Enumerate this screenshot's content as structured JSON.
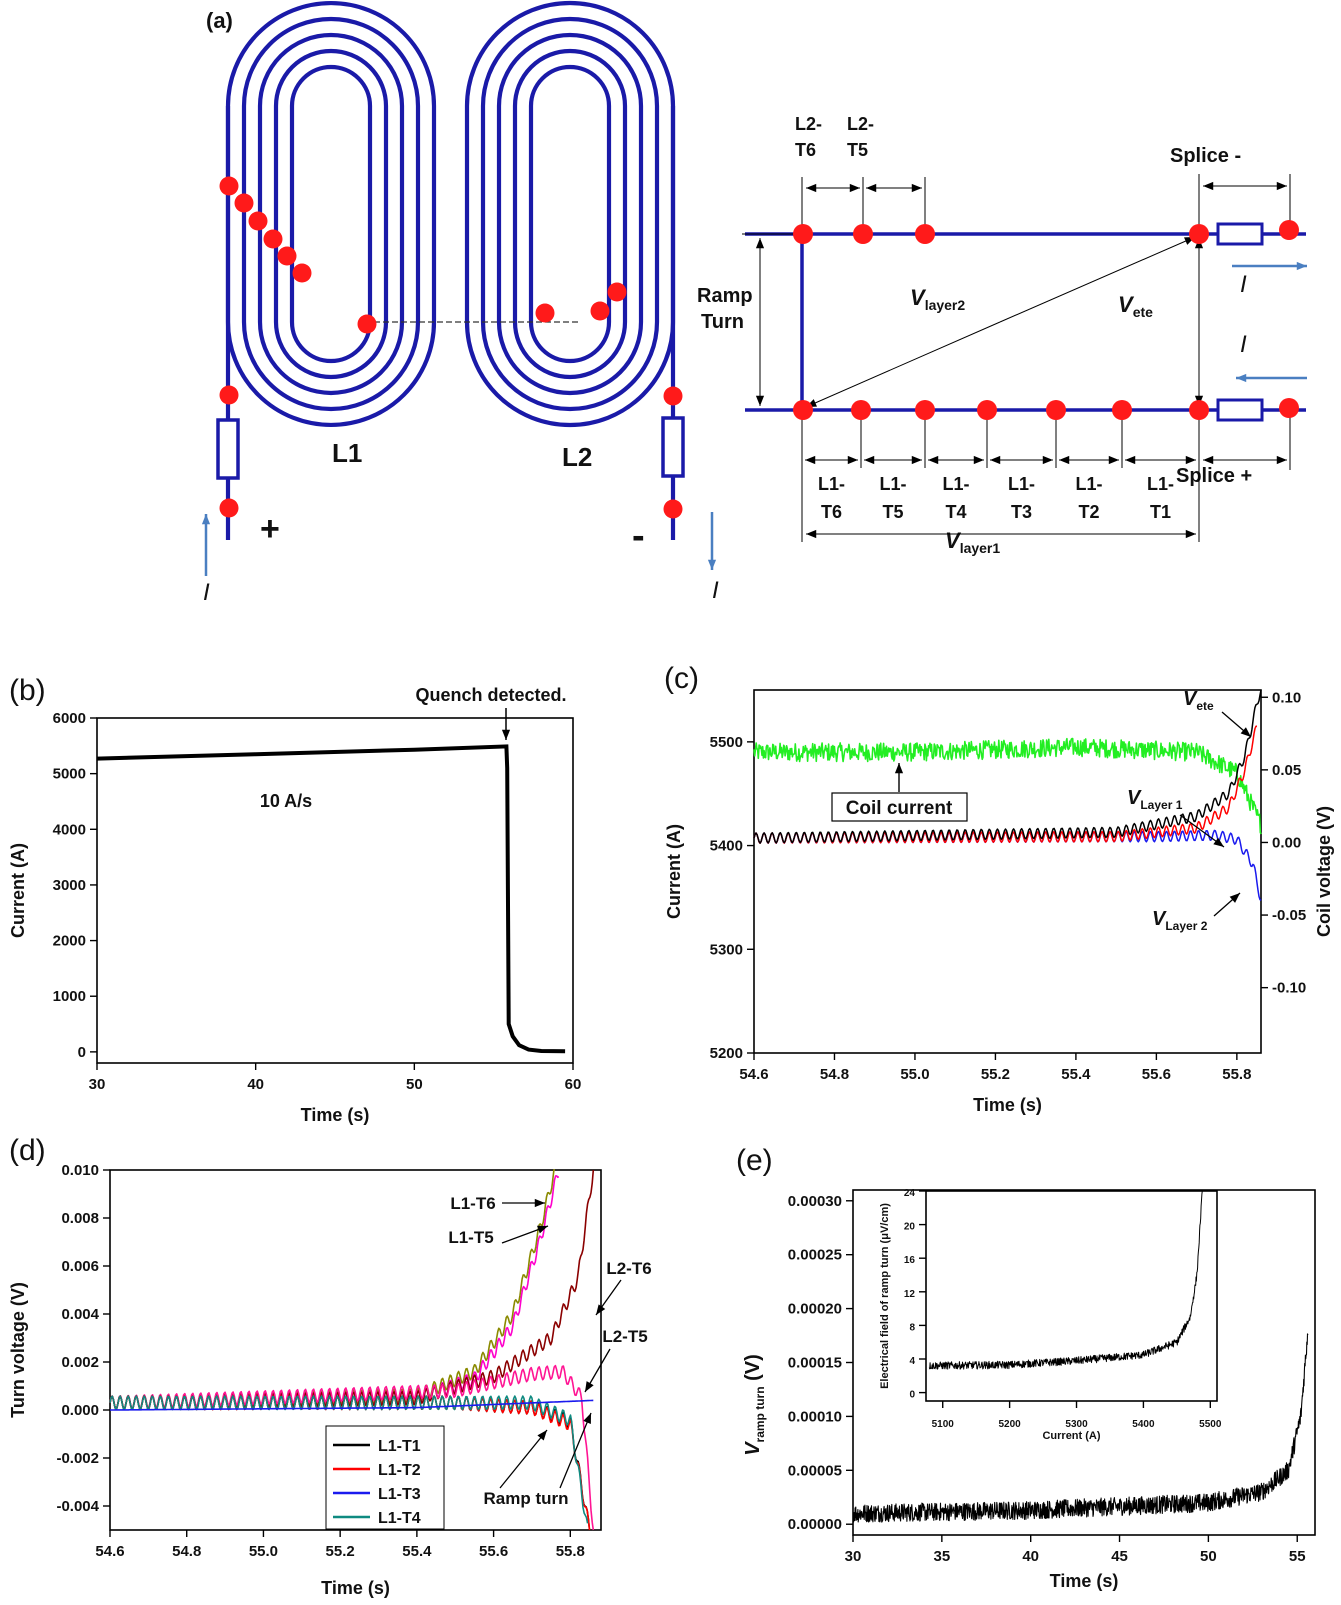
{
  "colors": {
    "coil": "#1a1aa8",
    "node": "#ff1a1a",
    "arrow": "#4a7fc1"
  },
  "panel_a": {
    "label": "(a)",
    "coil_labels": [
      "L1",
      "L2"
    ],
    "terminal_plus": "+",
    "terminal_minus": "-",
    "current_symbol": "I",
    "schematic": {
      "top_segments": [
        [
          "L2-",
          "T6"
        ],
        [
          "L2-",
          "T5"
        ]
      ],
      "bottom_segments": [
        [
          "L1-",
          "T6"
        ],
        [
          "L1-",
          "T5"
        ],
        [
          "L1-",
          "T4"
        ],
        [
          "L1-",
          "T3"
        ],
        [
          "L1-",
          "T2"
        ],
        [
          "L1-",
          "T1"
        ]
      ],
      "splice_minus": "Splice -",
      "splice_plus": "Splice +",
      "ramp_turn": [
        "Ramp",
        "Turn"
      ],
      "v_layer2": {
        "main": "V",
        "sub": "layer2"
      },
      "v_ete": {
        "main": "V",
        "sub": "ete"
      },
      "v_layer1": {
        "main": "V",
        "sub": "layer1"
      }
    }
  },
  "chart_data": [
    {
      "id": "b",
      "type": "line",
      "panel_label": "(b)",
      "xlabel": "Time (s)",
      "ylabel": "Current (A)",
      "xlim": [
        30,
        60
      ],
      "ylim": [
        -200,
        6000
      ],
      "xticks": [
        30,
        40,
        50,
        60
      ],
      "yticks": [
        0,
        1000,
        2000,
        3000,
        4000,
        5000,
        6000
      ],
      "series": [
        {
          "x": [
            30,
            40,
            50,
            55.8,
            55.85,
            55.95,
            56.2,
            56.6,
            57.2,
            58,
            59.5
          ],
          "y": [
            5270,
            5350,
            5430,
            5490,
            5100,
            500,
            280,
            120,
            40,
            15,
            10
          ]
        }
      ],
      "annotations": [
        "10 A/s",
        "Quench detected."
      ]
    },
    {
      "id": "c",
      "type": "line",
      "panel_label": "(c)",
      "xlabel": "Time (s)",
      "ylabel": "Current (A)",
      "y2label": "Coil voltage (V)",
      "xlim": [
        54.6,
        55.86
      ],
      "ylim": [
        5200,
        5550
      ],
      "y2lim": [
        -0.145,
        0.105
      ],
      "xticks": [
        "54.6",
        "54.8",
        "55.0",
        "55.2",
        "55.4",
        "55.6",
        "55.8"
      ],
      "yticks": [
        5200,
        5300,
        5400,
        5500
      ],
      "y2ticks": [
        "-0.10",
        "-0.05",
        "0.00",
        "0.05",
        "0.10"
      ],
      "series": [
        {
          "name": "Coil current",
          "axis": "left",
          "x": [
            54.6,
            55.0,
            55.4,
            55.7,
            55.8,
            55.86
          ],
          "y": [
            5490,
            5490,
            5495,
            5490,
            5470,
            5420
          ]
        },
        {
          "name": "V_ete",
          "axis": "right",
          "x": [
            54.6,
            55.5,
            55.7,
            55.78,
            55.82,
            55.86
          ],
          "y": [
            0.003,
            0.007,
            0.018,
            0.034,
            0.06,
            0.107
          ]
        },
        {
          "name": "V_Layer 1",
          "axis": "right",
          "x": [
            54.6,
            55.5,
            55.7,
            55.78,
            55.82,
            55.85
          ],
          "y": [
            0.003,
            0.004,
            0.01,
            0.024,
            0.05,
            0.08
          ]
        },
        {
          "name": "V_Layer 2",
          "axis": "right",
          "x": [
            54.6,
            55.6,
            55.75,
            55.8,
            55.84,
            55.86
          ],
          "y": [
            0.003,
            0.004,
            0.005,
            0.002,
            -0.015,
            -0.04
          ]
        }
      ],
      "annotations": [
        {
          "text": "Coil current"
        },
        {
          "main": "V",
          "sub": "ete"
        },
        {
          "main": "V",
          "sub": "Layer 1"
        },
        {
          "main": "V",
          "sub": "Layer 2"
        }
      ]
    },
    {
      "id": "d",
      "type": "line",
      "panel_label": "(d)",
      "xlabel": "Time (s)",
      "ylabel": "Turn voltage (V)",
      "xlim": [
        54.6,
        55.88
      ],
      "ylim": [
        -0.005,
        0.01
      ],
      "xticks": [
        "54.6",
        "54.8",
        "55.0",
        "55.2",
        "55.4",
        "55.6",
        "55.8"
      ],
      "yticks": [
        "-0.004",
        "-0.002",
        "0.000",
        "0.002",
        "0.004",
        "0.006",
        "0.008",
        "0.010"
      ],
      "legend": [
        "L1-T1",
        "L1-T2",
        "L1-T3",
        "L1-T4"
      ],
      "legend_colors": [
        "#000000",
        "#ff0000",
        "#1a1aee",
        "#0f8a80"
      ],
      "series": [
        {
          "name": "L1-T1",
          "color": "#000000",
          "x": [
            54.6,
            55.5,
            55.7,
            55.8,
            55.85
          ],
          "y": [
            0.0003,
            0.0003,
            0.0001,
            -0.0005,
            -0.005
          ]
        },
        {
          "name": "L1-T2",
          "color": "#ff0000",
          "x": [
            54.6,
            55.5,
            55.7,
            55.8,
            55.85
          ],
          "y": [
            0.0003,
            0.0003,
            0.0001,
            -0.0006,
            -0.005
          ]
        },
        {
          "name": "L1-T3",
          "color": "#1a1aee",
          "x": [
            54.6,
            55.4,
            55.86
          ],
          "y": [
            0.0,
            0.0001,
            0.0004
          ]
        },
        {
          "name": "L1-T4",
          "color": "#0f8a80",
          "x": [
            54.6,
            55.5,
            55.7,
            55.8,
            55.845
          ],
          "y": [
            0.0003,
            0.0003,
            0.0003,
            -0.0004,
            -0.005
          ]
        },
        {
          "name": "L1-T6",
          "color": "#8a8a00",
          "x": [
            54.6,
            55.4,
            55.55,
            55.65,
            55.72,
            55.76
          ],
          "y": [
            0.0003,
            0.0006,
            0.0016,
            0.004,
            0.0075,
            0.01
          ]
        },
        {
          "name": "L1-T5",
          "color": "#ff00cc",
          "x": [
            54.6,
            55.4,
            55.55,
            55.65,
            55.72,
            55.77
          ],
          "y": [
            0.0003,
            0.0005,
            0.0013,
            0.0035,
            0.007,
            0.01
          ]
        },
        {
          "name": "L2-T6",
          "color": "#8b0000",
          "x": [
            54.6,
            55.4,
            55.6,
            55.75,
            55.82,
            55.86
          ],
          "y": [
            0.0003,
            0.0005,
            0.0014,
            0.003,
            0.0055,
            0.01
          ]
        },
        {
          "name": "L2-T5",
          "color": "#ff1493",
          "x": [
            54.6,
            55.5,
            55.7,
            55.78,
            55.83,
            55.86
          ],
          "y": [
            0.0003,
            0.0008,
            0.0015,
            0.0016,
            0.0005,
            -0.005
          ]
        }
      ],
      "annotations": [
        "L1-T6",
        "L1-T5",
        "L2-T6",
        "L2-T5",
        "Ramp turn"
      ]
    },
    {
      "id": "e",
      "type": "line",
      "panel_label": "(e)",
      "xlabel": "Time (s)",
      "ylabel": {
        "main": "V",
        "sub": "ramp turn",
        "unit": "(V)"
      },
      "xlim": [
        30,
        56
      ],
      "ylim": [
        -1e-05,
        0.00031
      ],
      "xticks": [
        30,
        35,
        40,
        45,
        50,
        55
      ],
      "yticks": [
        "0.00000",
        "0.00005",
        "0.00010",
        "0.00015",
        "0.00020",
        "0.00025",
        "0.00030"
      ],
      "series": [
        {
          "x": [
            30,
            40,
            50,
            53,
            54.5,
            55.2,
            55.6
          ],
          "y": [
            1e-05,
            1.3e-05,
            2e-05,
            3e-05,
            5e-05,
            0.0001,
            0.00018
          ]
        }
      ],
      "inset": {
        "xlabel": "Current (A)",
        "ylabel": "Electrical field of ramp turn (μV/cm)",
        "xlim": [
          5075,
          5510
        ],
        "ylim": [
          -1,
          24
        ],
        "xticks": [
          5100,
          5200,
          5300,
          5400,
          5500
        ],
        "yticks": [
          0,
          4,
          8,
          12,
          16,
          20,
          24
        ],
        "series": [
          {
            "x": [
              5080,
              5200,
              5300,
              5400,
              5450,
              5470,
              5480,
              5488
            ],
            "y": [
              3.2,
              3.3,
              3.8,
              4.5,
              6,
              9,
              14,
              24
            ]
          }
        ]
      }
    }
  ]
}
